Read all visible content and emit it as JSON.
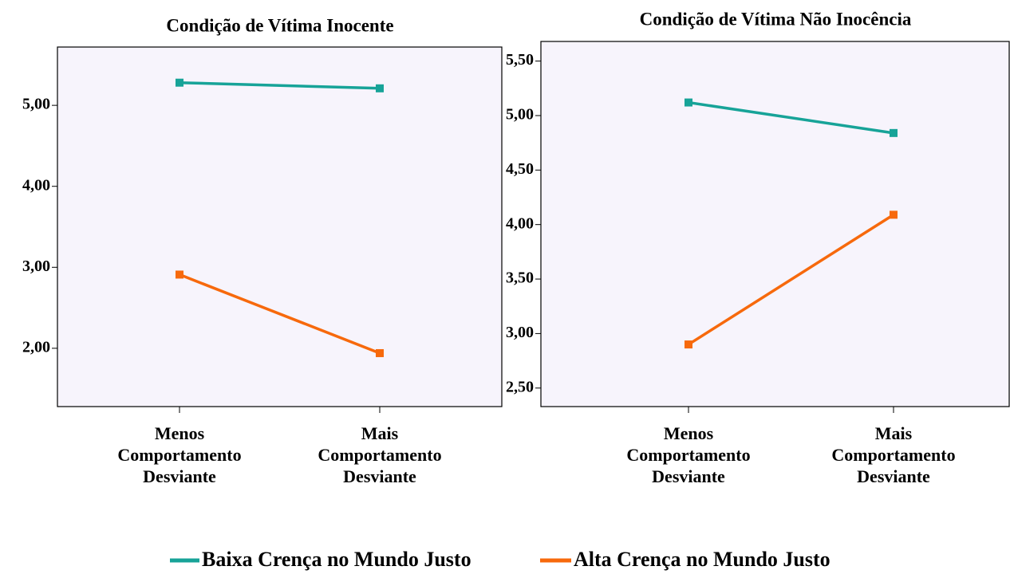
{
  "chart_data": [
    {
      "type": "line",
      "title": "Condição de Vítima Inocente",
      "categories": [
        "Menos Comportamento Desviante",
        "Mais Comportamento Desviante"
      ],
      "series": [
        {
          "name": "Baixa Crença no Mundo Justo",
          "color": "#17a398",
          "values": [
            5.28,
            5.21
          ]
        },
        {
          "name": "Alta Crença no Mundo Justo",
          "color": "#f7690c",
          "values": [
            2.91,
            1.94
          ]
        }
      ],
      "ylim": [
        1.28,
        5.72
      ],
      "yticks": [
        {
          "value": 2,
          "label": "2,00"
        },
        {
          "value": 3,
          "label": "3,00"
        },
        {
          "value": 4,
          "label": "4,00"
        },
        {
          "value": 5,
          "label": "5,00"
        }
      ]
    },
    {
      "type": "line",
      "title": "Condição de Vítima Não Inocência",
      "categories": [
        "Menos Comportamento Desviante",
        "Mais Comportamento Desviante"
      ],
      "series": [
        {
          "name": "Baixa Crença no Mundo Justo",
          "color": "#17a398",
          "values": [
            5.12,
            4.84
          ]
        },
        {
          "name": "Alta Crença no Mundo Justo",
          "color": "#f7690c",
          "values": [
            2.9,
            4.09
          ]
        }
      ],
      "ylim": [
        2.33,
        5.68
      ],
      "yticks": [
        {
          "value": 2.5,
          "label": "2,50"
        },
        {
          "value": 3,
          "label": "3,00"
        },
        {
          "value": 3.5,
          "label": "3,50"
        },
        {
          "value": 4,
          "label": "4,00"
        },
        {
          "value": 4.5,
          "label": "4,50"
        },
        {
          "value": 5,
          "label": "5,00"
        },
        {
          "value": 5.5,
          "label": "5,50"
        }
      ]
    }
  ]
}
